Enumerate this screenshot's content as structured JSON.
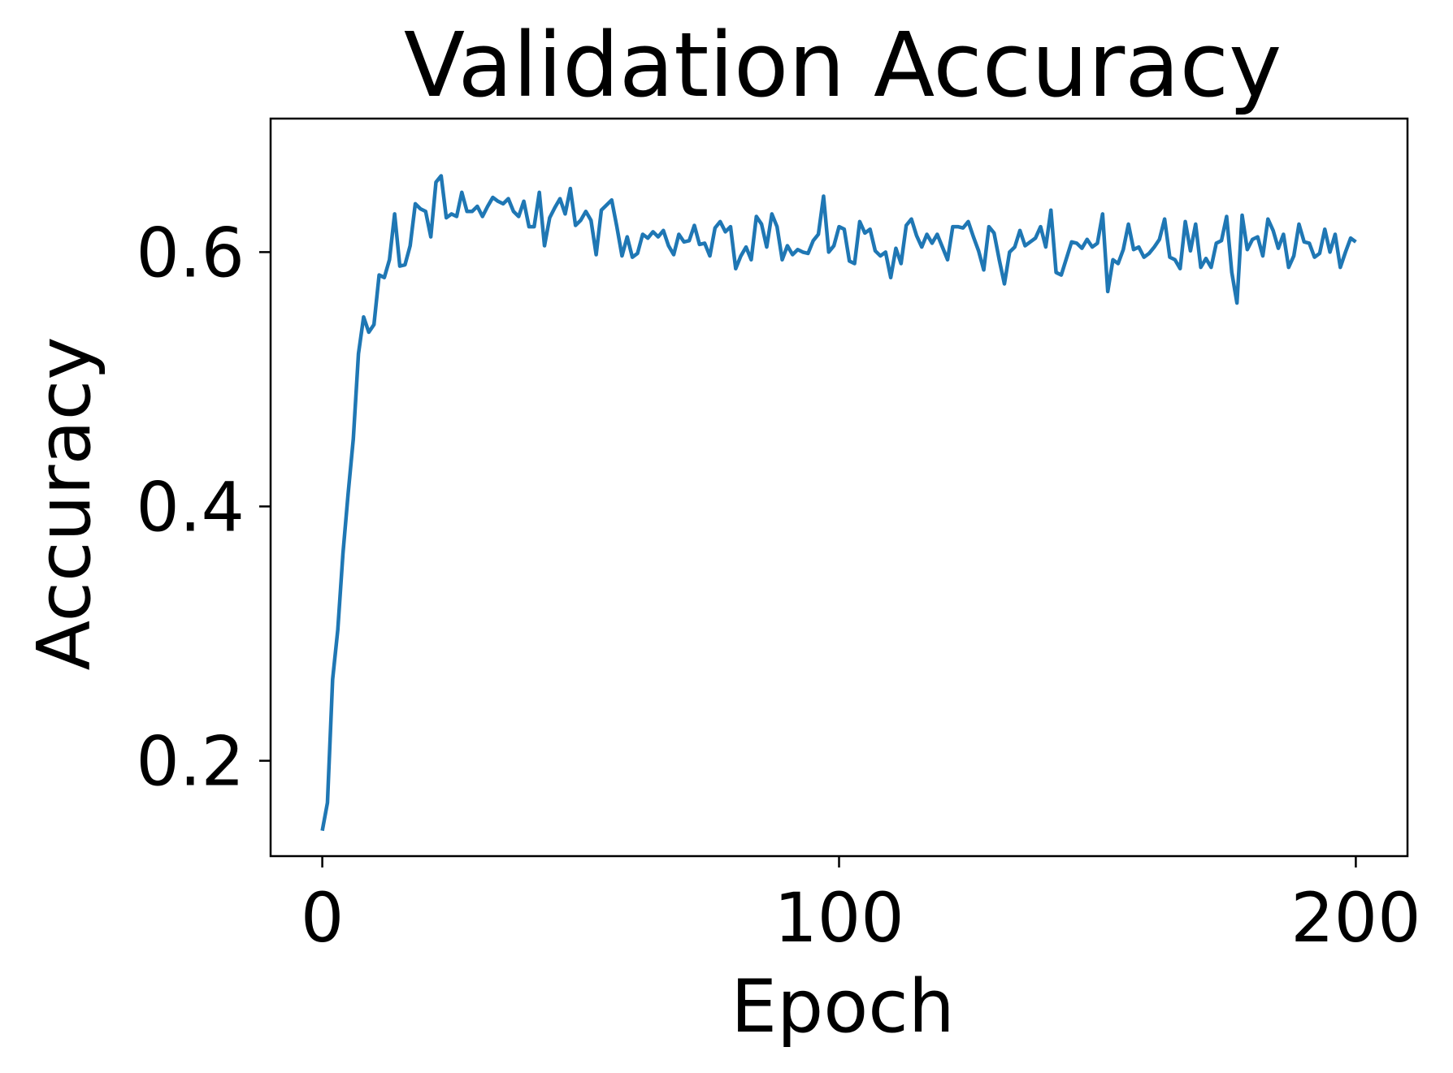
{
  "chart_data": {
    "type": "line",
    "title": "Validation Accuracy",
    "xlabel": "Epoch",
    "ylabel": "Accuracy",
    "xlim": [
      -10,
      210
    ],
    "ylim": [
      0.125,
      0.705
    ],
    "xticks": [
      0,
      100,
      200
    ],
    "xtick_labels": [
      "0",
      "100",
      "200"
    ],
    "yticks": [
      0.2,
      0.4,
      0.6
    ],
    "ytick_labels": [
      "0.2",
      "0.4",
      "0.6"
    ],
    "grid": false,
    "legend": "none",
    "series": [
      {
        "color": "#1f77b4",
        "x": [
          0,
          1,
          2,
          3,
          4,
          5,
          6,
          7,
          8,
          9,
          10,
          11,
          12,
          13,
          14,
          15,
          16,
          17,
          18,
          19,
          20,
          21,
          22,
          23,
          24,
          25,
          26,
          27,
          28,
          29,
          30,
          31,
          32,
          33,
          34,
          35,
          36,
          37,
          38,
          39,
          40,
          41,
          42,
          43,
          44,
          45,
          46,
          47,
          48,
          49,
          50,
          51,
          52,
          53,
          54,
          55,
          56,
          57,
          58,
          59,
          60,
          61,
          62,
          63,
          64,
          65,
          66,
          67,
          68,
          69,
          70,
          71,
          72,
          73,
          74,
          75,
          76,
          77,
          78,
          79,
          80,
          81,
          82,
          83,
          84,
          85,
          86,
          87,
          88,
          89,
          90,
          91,
          92,
          93,
          94,
          95,
          96,
          97,
          98,
          99,
          100,
          101,
          102,
          103,
          104,
          105,
          106,
          107,
          108,
          109,
          110,
          111,
          112,
          113,
          114,
          115,
          116,
          117,
          118,
          119,
          120,
          121,
          122,
          123,
          124,
          125,
          126,
          127,
          128,
          129,
          130,
          131,
          132,
          133,
          134,
          135,
          136,
          137,
          138,
          139,
          140,
          141,
          142,
          143,
          144,
          145,
          146,
          147,
          148,
          149,
          150,
          151,
          152,
          153,
          154,
          155,
          156,
          157,
          158,
          159,
          160,
          161,
          162,
          163,
          164,
          165,
          166,
          167,
          168,
          169,
          170,
          171,
          172,
          173,
          174,
          175,
          176,
          177,
          178,
          179,
          180,
          181,
          182,
          183,
          184,
          185,
          186,
          187,
          188,
          189,
          190,
          191,
          192,
          193,
          194,
          195,
          196,
          197,
          198,
          199,
          200
        ],
        "y": [
          0.145,
          0.167,
          0.264,
          0.303,
          0.363,
          0.41,
          0.453,
          0.52,
          0.549,
          0.537,
          0.543,
          0.582,
          0.58,
          0.594,
          0.63,
          0.589,
          0.59,
          0.605,
          0.638,
          0.634,
          0.632,
          0.612,
          0.655,
          0.66,
          0.627,
          0.63,
          0.628,
          0.647,
          0.632,
          0.632,
          0.636,
          0.628,
          0.636,
          0.643,
          0.64,
          0.638,
          0.642,
          0.632,
          0.628,
          0.64,
          0.62,
          0.62,
          0.647,
          0.605,
          0.627,
          0.635,
          0.642,
          0.63,
          0.65,
          0.621,
          0.625,
          0.632,
          0.625,
          0.598,
          0.633,
          0.637,
          0.641,
          0.62,
          0.597,
          0.612,
          0.596,
          0.599,
          0.614,
          0.611,
          0.616,
          0.612,
          0.617,
          0.605,
          0.598,
          0.614,
          0.608,
          0.609,
          0.621,
          0.606,
          0.607,
          0.597,
          0.619,
          0.624,
          0.616,
          0.62,
          0.587,
          0.597,
          0.604,
          0.594,
          0.628,
          0.622,
          0.604,
          0.63,
          0.62,
          0.594,
          0.605,
          0.598,
          0.602,
          0.6,
          0.599,
          0.609,
          0.614,
          0.644,
          0.6,
          0.605,
          0.62,
          0.618,
          0.593,
          0.591,
          0.624,
          0.615,
          0.618,
          0.601,
          0.597,
          0.6,
          0.58,
          0.603,
          0.591,
          0.621,
          0.626,
          0.613,
          0.604,
          0.614,
          0.607,
          0.614,
          0.604,
          0.594,
          0.62,
          0.62,
          0.619,
          0.624,
          0.612,
          0.601,
          0.586,
          0.62,
          0.615,
          0.594,
          0.575,
          0.6,
          0.604,
          0.617,
          0.605,
          0.608,
          0.611,
          0.62,
          0.604,
          0.633,
          0.584,
          0.582,
          0.595,
          0.608,
          0.607,
          0.603,
          0.61,
          0.604,
          0.607,
          0.63,
          0.569,
          0.594,
          0.591,
          0.602,
          0.622,
          0.602,
          0.604,
          0.596,
          0.599,
          0.604,
          0.61,
          0.626,
          0.596,
          0.594,
          0.587,
          0.624,
          0.601,
          0.622,
          0.588,
          0.595,
          0.588,
          0.607,
          0.609,
          0.628,
          0.584,
          0.56,
          0.629,
          0.602,
          0.61,
          0.612,
          0.597,
          0.626,
          0.617,
          0.603,
          0.614,
          0.588,
          0.597,
          0.622,
          0.608,
          0.607,
          0.596,
          0.599,
          0.618,
          0.6,
          0.614,
          0.588,
          0.6,
          0.611,
          0.608
        ]
      }
    ]
  }
}
